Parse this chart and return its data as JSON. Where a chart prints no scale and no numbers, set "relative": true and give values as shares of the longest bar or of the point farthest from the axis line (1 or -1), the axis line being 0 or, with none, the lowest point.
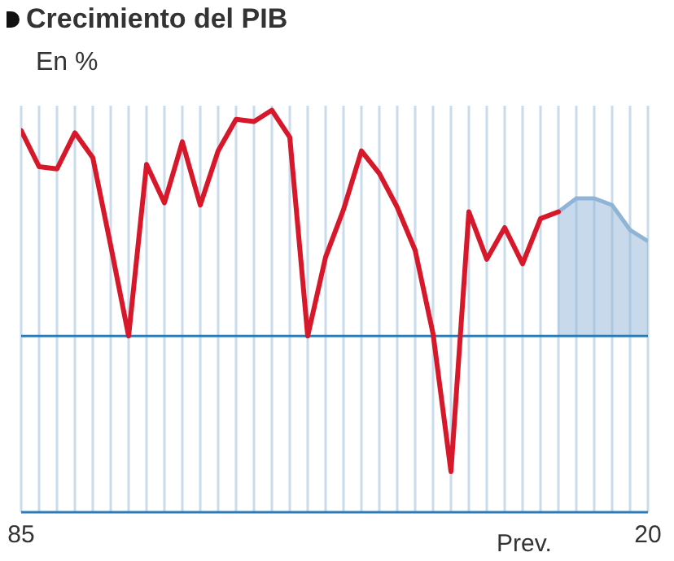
{
  "chart_data": {
    "type": "line",
    "title": "Crecimiento del PIB",
    "subtitle": "En %",
    "relative": true,
    "grid": "x",
    "xlim": [
      1985,
      2020
    ],
    "xticks": [
      {
        "value": 1985,
        "label": "85"
      },
      {
        "value": 1986,
        "label": null
      },
      {
        "value": 1987,
        "label": null
      },
      {
        "value": 1988,
        "label": null
      },
      {
        "value": 1989,
        "label": null
      },
      {
        "value": 1990,
        "label": null
      },
      {
        "value": 1991,
        "label": null
      },
      {
        "value": 1992,
        "label": null
      },
      {
        "value": 1993,
        "label": null
      },
      {
        "value": 1994,
        "label": null
      },
      {
        "value": 1995,
        "label": null
      },
      {
        "value": 1996,
        "label": null
      },
      {
        "value": 1997,
        "label": null
      },
      {
        "value": 1998,
        "label": null
      },
      {
        "value": 1999,
        "label": null
      },
      {
        "value": 2000,
        "label": null
      },
      {
        "value": 2001,
        "label": null
      },
      {
        "value": 2002,
        "label": null
      },
      {
        "value": 2003,
        "label": null
      },
      {
        "value": 2004,
        "label": null
      },
      {
        "value": 2005,
        "label": null
      },
      {
        "value": 2006,
        "label": null
      },
      {
        "value": 2007,
        "label": null
      },
      {
        "value": 2008,
        "label": null
      },
      {
        "value": 2009,
        "label": null
      },
      {
        "value": 2010,
        "label": null
      },
      {
        "value": 2011,
        "label": null
      },
      {
        "value": 2012,
        "label": null
      },
      {
        "value": 2013,
        "label": null
      },
      {
        "value": 2014,
        "label": null
      },
      {
        "value": 2015,
        "label": null
      },
      {
        "value": 2016,
        "label": null
      },
      {
        "value": 2017,
        "label": null
      },
      {
        "value": 2018,
        "label": null
      },
      {
        "value": 2019,
        "label": null
      },
      {
        "value": 2020,
        "label": "20"
      }
    ],
    "annotations": [
      "Prev."
    ],
    "ref_lines": [
      {
        "axis": "y",
        "value": 0,
        "color": "#2c7bb6"
      }
    ],
    "series": [
      {
        "color": "#d7182a",
        "x": [
          1985,
          1986,
          1987,
          1988,
          1989,
          1990,
          1991,
          1992,
          1993,
          1994,
          1995,
          1996,
          1997,
          1998,
          1999,
          2000,
          2001,
          2002,
          2003,
          2004,
          2005,
          2006,
          2007,
          2008,
          2009,
          2010,
          2011,
          2012,
          2013,
          2014,
          2015
        ],
        "values": [
          0.91,
          0.75,
          0.74,
          0.9,
          0.79,
          0.4,
          0,
          0.76,
          0.59,
          0.86,
          0.58,
          0.82,
          0.96,
          0.95,
          1,
          0.88,
          0,
          0.35,
          0.56,
          0.82,
          0.72,
          0.57,
          0.38,
          0.01,
          -0.6,
          0.55,
          0.34,
          0.48,
          0.32,
          0.52,
          0.55
        ]
      },
      {
        "type": "area",
        "color": "#8fb4d6",
        "x": [
          2015,
          2016,
          2017,
          2018,
          2019,
          2020
        ],
        "values": [
          0.55,
          0.61,
          0.61,
          0.58,
          0.47,
          0.42
        ]
      }
    ]
  }
}
